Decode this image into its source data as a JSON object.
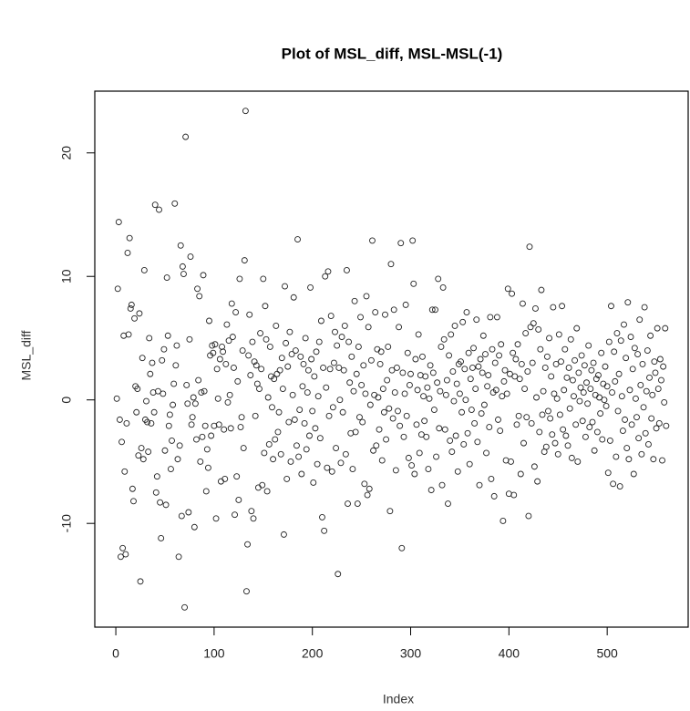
{
  "chart_data": {
    "type": "scatter",
    "title": "Plot of MSL_diff, MSL-MSL(-1)",
    "x_label": "Index",
    "y_label": "MSL_diff",
    "color": "#222222",
    "x": [
      1,
      2,
      3,
      4,
      5,
      6,
      7,
      8,
      9,
      10,
      11,
      12,
      13,
      14,
      15,
      16,
      17,
      18,
      19,
      20,
      21,
      22,
      23,
      24,
      25,
      26,
      27,
      28,
      29,
      30,
      31,
      32,
      33,
      34,
      35,
      36,
      37,
      38,
      39,
      40,
      41,
      42,
      43,
      44,
      45,
      46,
      47,
      48,
      49,
      50,
      51,
      52,
      53,
      54,
      55,
      56,
      57,
      58,
      59,
      60,
      61,
      62,
      63,
      64,
      65,
      66,
      67,
      68,
      69,
      70,
      71,
      72,
      73,
      74,
      75,
      76,
      77,
      78,
      79,
      80,
      81,
      82,
      83,
      84,
      85,
      86,
      87,
      88,
      89,
      90,
      91,
      92,
      93,
      94,
      95,
      96,
      97,
      98,
      99,
      100,
      101,
      102,
      103,
      104,
      105,
      106,
      107,
      108,
      109,
      110,
      111,
      112,
      113,
      114,
      115,
      116,
      117,
      118,
      119,
      120,
      121,
      122,
      123,
      124,
      125,
      126,
      127,
      128,
      129,
      130,
      131,
      132,
      133,
      134,
      135,
      136,
      137,
      138,
      139,
      140,
      141,
      142,
      143,
      144,
      145,
      146,
      147,
      148,
      149,
      150,
      151,
      152,
      153,
      154,
      155,
      156,
      157,
      158,
      159,
      160,
      161,
      162,
      163,
      164,
      165,
      166,
      167,
      168,
      169,
      170,
      171,
      172,
      173,
      174,
      175,
      176,
      177,
      178,
      179,
      180,
      181,
      182,
      183,
      184,
      185,
      186,
      187,
      188,
      189,
      190,
      191,
      192,
      193,
      194,
      195,
      196,
      197,
      198,
      199,
      200,
      201,
      202,
      203,
      204,
      205,
      206,
      207,
      208,
      209,
      210,
      211,
      212,
      213,
      214,
      215,
      216,
      217,
      218,
      219,
      220,
      221,
      222,
      223,
      224,
      225,
      226,
      227,
      228,
      229,
      230,
      231,
      232,
      233,
      234,
      235,
      236,
      237,
      238,
      239,
      240,
      241,
      242,
      243,
      244,
      245,
      246,
      247,
      248,
      249,
      250,
      251,
      252,
      253,
      254,
      255,
      256,
      257,
      258,
      259,
      260,
      261,
      262,
      263,
      264,
      265,
      266,
      267,
      268,
      269,
      270,
      271,
      272,
      273,
      274,
      275,
      276,
      277,
      278,
      279,
      280,
      281,
      282,
      283,
      284,
      285,
      286,
      287,
      288,
      289,
      290,
      291,
      292,
      293,
      294,
      295,
      296,
      297,
      298,
      299,
      300,
      301,
      302,
      303,
      304,
      305,
      306,
      307,
      308,
      309,
      310,
      311,
      312,
      313,
      314,
      315,
      316,
      317,
      318,
      319,
      320,
      321,
      322,
      323,
      324,
      325,
      326,
      327,
      328,
      329,
      330,
      331,
      332,
      333,
      334,
      335,
      336,
      337,
      338,
      339,
      340,
      341,
      342,
      343,
      344,
      345,
      346,
      347,
      348,
      349,
      350,
      351,
      352,
      353,
      354,
      355,
      356,
      357,
      358,
      359,
      360,
      361,
      362,
      363,
      364,
      365,
      366,
      367,
      368,
      369,
      370,
      371,
      372,
      373,
      374,
      375,
      376,
      377,
      378,
      379,
      380,
      381,
      382,
      383,
      384,
      385,
      386,
      387,
      388,
      389,
      390,
      391,
      392,
      393,
      394,
      395,
      396,
      397,
      398,
      399,
      400,
      401,
      402,
      403,
      404,
      405,
      406,
      407,
      408,
      409,
      410,
      411,
      412,
      413,
      414,
      415,
      416,
      417,
      418,
      419,
      420,
      421,
      422,
      423,
      424,
      425,
      426,
      427,
      428,
      429,
      430,
      431,
      432,
      433,
      434,
      435,
      436,
      437,
      438,
      439,
      440,
      441,
      442,
      443,
      444,
      445,
      446,
      447,
      448,
      449,
      450,
      451,
      452,
      453,
      454,
      455,
      456,
      457,
      458,
      459,
      460,
      461,
      462,
      463,
      464,
      465,
      466,
      467,
      468,
      469,
      470,
      471,
      472,
      473,
      474,
      475,
      476,
      477,
      478,
      479,
      480,
      481,
      482,
      483,
      484,
      485,
      486,
      487,
      488,
      489,
      490,
      491,
      492,
      493,
      494,
      495,
      496,
      497,
      498,
      499,
      500,
      501,
      502,
      503,
      504,
      505,
      506,
      507,
      508,
      509,
      510,
      511,
      512,
      513,
      514,
      515,
      516,
      517,
      518,
      519,
      520,
      521,
      522,
      523,
      524,
      525,
      526,
      527,
      528,
      529,
      530,
      531,
      532,
      533,
      534,
      535,
      536,
      537,
      538,
      539,
      540,
      541,
      542,
      543,
      544,
      545,
      546,
      547,
      548,
      549,
      550,
      551,
      552,
      553,
      554,
      555,
      556,
      557,
      558,
      559,
      560
    ],
    "values": [
      0.1,
      9.0,
      14.4,
      -1.6,
      -12.7,
      -3.4,
      -12.0,
      5.2,
      -5.8,
      -12.5,
      -1.9,
      11.9,
      5.3,
      13.1,
      7.4,
      7.7,
      -7.2,
      -8.2,
      6.6,
      1.1,
      -1.0,
      0.9,
      -4.5,
      7.0,
      -14.7,
      -3.9,
      3.4,
      -4.8,
      10.5,
      -1.6,
      -0.1,
      -1.8,
      -4.2,
      5.0,
      2.1,
      -1.9,
      3.0,
      0.6,
      -1.0,
      15.8,
      -7.5,
      -6.2,
      0.7,
      15.4,
      -8.3,
      -11.2,
      3.2,
      0.5,
      4.1,
      -4.1,
      -8.5,
      9.9,
      5.2,
      -2.1,
      -1.2,
      -5.6,
      -3.3,
      -0.4,
      1.3,
      15.9,
      2.8,
      4.4,
      -4.8,
      -12.7,
      -3.7,
      12.5,
      -9.4,
      10.8,
      10.2,
      -16.8,
      21.3,
      1.2,
      -0.3,
      -9.1,
      4.9,
      11.6,
      -2.0,
      -1.4,
      0.2,
      -10.3,
      -0.3,
      -3.2,
      9.0,
      1.6,
      8.4,
      -5.0,
      0.6,
      -3.0,
      10.1,
      0.7,
      -2.1,
      -7.4,
      -4.0,
      -5.5,
      6.4,
      3.6,
      -2.9,
      4.4,
      3.8,
      -2.1,
      4.5,
      -9.6,
      2.5,
      0.1,
      -2.0,
      3.3,
      -6.6,
      4.3,
      3.9,
      -2.4,
      -6.4,
      2.9,
      6.1,
      -0.2,
      4.8,
      0.4,
      -2.3,
      7.8,
      5.1,
      2.6,
      -9.3,
      7.1,
      -6.2,
      1.5,
      -8.1,
      9.8,
      -2.2,
      -1.4,
      4.0,
      -3.9,
      11.3,
      23.4,
      -15.5,
      -11.7,
      3.6,
      6.9,
      2.0,
      -9.0,
      4.7,
      -9.6,
      3.1,
      -1.3,
      2.8,
      1.3,
      -7.1,
      0.9,
      5.4,
      2.5,
      -6.9,
      9.8,
      -4.3,
      7.6,
      4.9,
      -7.4,
      0.2,
      -3.6,
      4.3,
      1.9,
      -0.6,
      -4.8,
      1.7,
      -3.2,
      6.0,
      2.1,
      -2.6,
      -1.0,
      2.4,
      -4.4,
      3.4,
      0.9,
      -10.9,
      9.2,
      4.6,
      -6.4,
      2.7,
      -1.8,
      5.5,
      -5.0,
      3.7,
      0.4,
      8.3,
      -1.6,
      4.0,
      -3.7,
      13.0,
      -4.6,
      -0.8,
      3.5,
      -6.0,
      1.1,
      2.9,
      -1.9,
      5.0,
      -4.0,
      0.6,
      2.4,
      -2.9,
      9.1,
      3.3,
      -0.9,
      -6.7,
      1.9,
      -2.3,
      3.9,
      -5.2,
      0.3,
      4.7,
      -3.1,
      6.4,
      -9.5,
      2.6,
      -10.6,
      10.0,
      1.0,
      -5.5,
      10.4,
      -1.3,
      2.5,
      6.8,
      -5.8,
      -0.6,
      3.0,
      5.5,
      -3.9,
      4.4,
      -14.1,
      2.6,
      0.0,
      -5.1,
      5.1,
      -1.0,
      2.4,
      6.0,
      -4.4,
      10.5,
      -8.4,
      4.7,
      1.4,
      -2.7,
      3.5,
      -5.6,
      0.7,
      8.0,
      -2.6,
      2.1,
      -8.4,
      4.3,
      -1.4,
      6.7,
      1.2,
      -1.8,
      2.8,
      -6.8,
      0.5,
      8.4,
      -7.7,
      5.9,
      -7.2,
      -0.4,
      3.2,
      12.9,
      -4.1,
      0.4,
      7.1,
      -3.7,
      4.1,
      0.2,
      -2.4,
      2.9,
      3.9,
      -4.9,
      0.9,
      -1.0,
      6.9,
      -3.2,
      1.6,
      4.3,
      -0.7,
      -9.0,
      11.0,
      2.4,
      -1.5,
      7.3,
      0.6,
      -5.7,
      2.6,
      -0.9,
      5.9,
      -2.1,
      12.7,
      -12.0,
      2.2,
      -3.0,
      0.5,
      7.7,
      -1.3,
      3.8,
      -4.7,
      1.2,
      2.1,
      -5.3,
      12.9,
      9.4,
      -6.0,
      3.3,
      -2.0,
      0.8,
      5.3,
      -4.3,
      2.0,
      -2.8,
      3.5,
      0.3,
      -1.7,
      1.9,
      -3.0,
      1.0,
      -5.6,
      0.1,
      2.8,
      -7.3,
      7.3,
      2.2,
      -0.8,
      7.3,
      -4.6,
      1.4,
      9.8,
      -2.3,
      0.7,
      4.3,
      -6.9,
      9.1,
      4.9,
      -2.4,
      0.4,
      1.6,
      -8.4,
      3.6,
      -3.3,
      5.3,
      -4.2,
      2.3,
      -0.1,
      6.0,
      -2.9,
      1.3,
      -5.8,
      2.9,
      0.5,
      3.1,
      -1.0,
      6.3,
      -3.6,
      2.5,
      0.0,
      7.1,
      -2.7,
      3.8,
      -5.2,
      1.7,
      -0.8,
      2.6,
      4.2,
      -1.9,
      0.9,
      6.5,
      -3.4,
      2.7,
      -6.9,
      3.3,
      -1.1,
      2.2,
      5.2,
      -0.4,
      3.7,
      -4.3,
      1.1,
      2.0,
      -2.2,
      6.7,
      -6.4,
      4.1,
      0.6,
      -7.8,
      3.0,
      0.8,
      6.7,
      -1.6,
      3.6,
      -2.5,
      4.5,
      0.3,
      -9.8,
      1.5,
      2.4,
      -4.9,
      0.5,
      9.0,
      -7.6,
      2.1,
      -5.0,
      8.6,
      3.8,
      -7.7,
      1.9,
      3.3,
      -2.0,
      4.5,
      -1.3,
      1.7,
      -6.0,
      2.9,
      7.8,
      -3.5,
      0.9,
      5.4,
      -1.4,
      2.3,
      -9.4,
      12.4,
      5.9,
      -1.9,
      3.0,
      6.2,
      -5.4,
      7.4,
      0.2,
      -6.6,
      5.7,
      -2.6,
      4.1,
      8.9,
      -1.2,
      0.7,
      -4.2,
      2.6,
      -3.8,
      3.5,
      -0.9,
      5.0,
      -1.5,
      1.9,
      -2.8,
      7.5,
      0.5,
      -3.5,
      2.9,
      0.1,
      -4.4,
      5.3,
      -1.2,
      3.1,
      7.6,
      -2.4,
      0.8,
      4.1,
      -2.9,
      1.8,
      -3.7,
      2.6,
      -0.7,
      4.9,
      -4.7,
      1.6,
      0.3,
      3.2,
      -2.0,
      5.8,
      -5.0,
      2.2,
      -0.1,
      1.0,
      3.6,
      -1.7,
      0.6,
      2.8,
      -3.0,
      1.4,
      -0.3,
      4.4,
      -2.2,
      0.9,
      2.4,
      -1.8,
      3.0,
      -4.1,
      0.4,
      1.7,
      -2.6,
      2.0,
      0.2,
      -1.1,
      3.8,
      -3.2,
      1.3,
      0.0,
      2.7,
      -0.5,
      1.1,
      -5.9,
      4.7,
      -3.3,
      7.6,
      0.6,
      -6.8,
      3.9,
      1.5,
      -4.6,
      5.4,
      -0.9,
      2.1,
      -7.0,
      4.8,
      0.3,
      -2.5,
      6.1,
      -1.6,
      3.4,
      -3.9,
      7.9,
      -4.8,
      0.8,
      5.1,
      -2.0,
      2.5,
      -6.0,
      4.2,
      0.1,
      -1.4,
      3.7,
      -3.1,
      6.5,
      1.2,
      -4.4,
      2.9,
      -0.6,
      7.5,
      -2.7,
      0.7,
      4.0,
      -3.6,
      1.8,
      5.2,
      -1.5,
      0.4,
      -4.8,
      3.1,
      2.2,
      -2.3,
      5.8,
      0.9,
      -1.9,
      3.3,
      1.6,
      -4.9,
      2.7,
      -0.2,
      5.8,
      -2.1
    ],
    "xlim": [
      -21.4,
      582.4
    ],
    "ylim": [
      -18.4,
      25.0
    ],
    "xticks": [
      0,
      100,
      200,
      300,
      400,
      500
    ],
    "yticks": [
      -10,
      0,
      10,
      20
    ]
  }
}
